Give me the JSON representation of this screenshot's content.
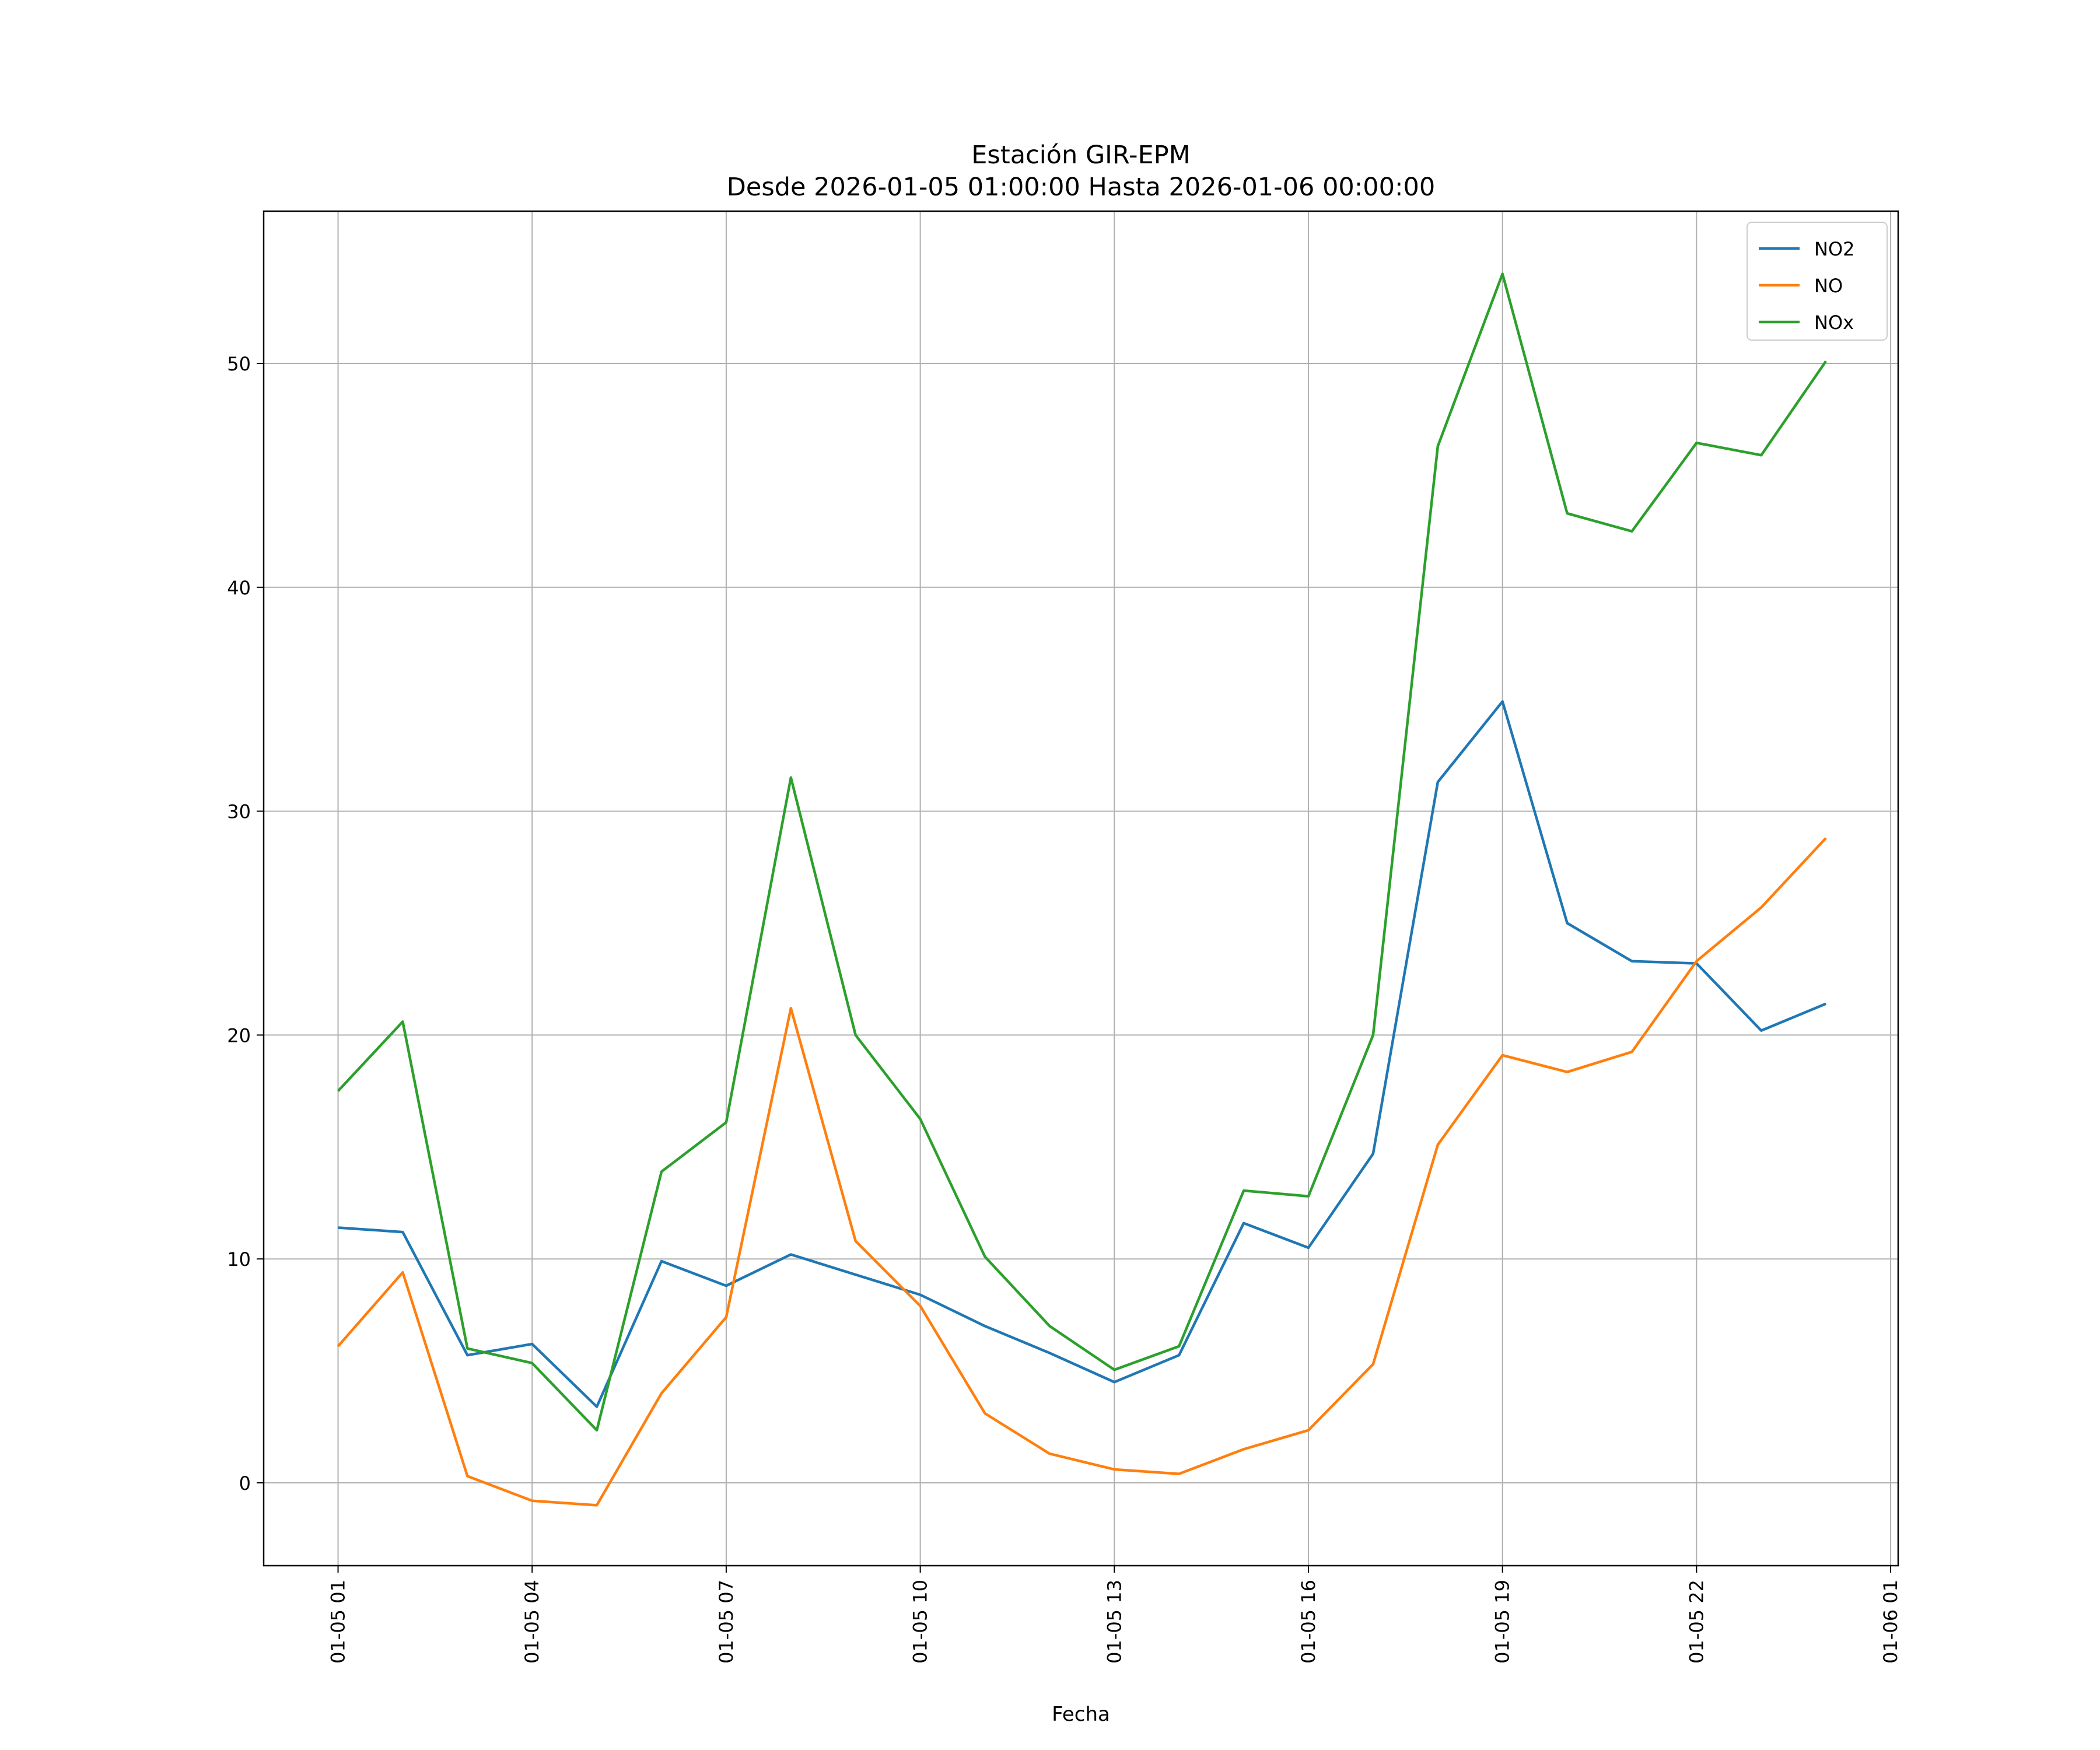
{
  "chart_data": {
    "type": "line",
    "title": "Estación GIR-EPM",
    "subtitle": "Desde 2026-01-05 01:00:00 Hasta 2026-01-06 00:00:00",
    "xlabel": "Fecha",
    "ylabel": "",
    "xlim": [
      "2026-01-04 23:51",
      "2026-01-06 01:07"
    ],
    "ylim": [
      -3.7,
      56.8
    ],
    "grid": true,
    "legend_position": "top-right",
    "x_ticks": [
      {
        "at": "2026-01-05 01:00",
        "label": "01-05 01"
      },
      {
        "at": "2026-01-05 04:00",
        "label": "01-05 04"
      },
      {
        "at": "2026-01-05 07:00",
        "label": "01-05 07"
      },
      {
        "at": "2026-01-05 10:00",
        "label": "01-05 10"
      },
      {
        "at": "2026-01-05 13:00",
        "label": "01-05 13"
      },
      {
        "at": "2026-01-05 16:00",
        "label": "01-05 16"
      },
      {
        "at": "2026-01-05 19:00",
        "label": "01-05 19"
      },
      {
        "at": "2026-01-05 22:00",
        "label": "01-05 22"
      },
      {
        "at": "2026-01-06 01:00",
        "label": "01-06 01"
      }
    ],
    "y_ticks": [
      0,
      10,
      20,
      30,
      40,
      50
    ],
    "x": [
      "2026-01-05 01:00",
      "2026-01-05 02:00",
      "2026-01-05 03:00",
      "2026-01-05 04:00",
      "2026-01-05 05:00",
      "2026-01-05 06:00",
      "2026-01-05 07:00",
      "2026-01-05 08:00",
      "2026-01-05 09:00",
      "2026-01-05 10:00",
      "2026-01-05 11:00",
      "2026-01-05 12:00",
      "2026-01-05 13:00",
      "2026-01-05 14:00",
      "2026-01-05 15:00",
      "2026-01-05 16:00",
      "2026-01-05 17:00",
      "2026-01-05 18:00",
      "2026-01-05 19:00",
      "2026-01-05 20:00",
      "2026-01-05 21:00",
      "2026-01-05 22:00",
      "2026-01-05 23:00",
      "2026-01-06 00:00"
    ],
    "series": [
      {
        "name": "NO2",
        "color": "#1f77b4",
        "values": [
          11.4,
          11.2,
          5.7,
          6.2,
          3.4,
          9.9,
          8.8,
          10.2,
          9.3,
          8.4,
          7.0,
          5.8,
          4.5,
          5.7,
          11.6,
          10.5,
          14.7,
          31.3,
          34.9,
          25.0,
          23.3,
          23.2,
          20.2,
          21.4
        ]
      },
      {
        "name": "NO",
        "color": "#ff7f0e",
        "values": [
          6.1,
          9.4,
          0.3,
          -0.8,
          -1.0,
          4.0,
          7.4,
          21.2,
          10.8,
          7.9,
          3.1,
          1.3,
          0.6,
          0.4,
          1.5,
          2.35,
          5.3,
          15.1,
          19.1,
          18.35,
          19.25,
          23.3,
          25.7,
          28.8
        ]
      },
      {
        "name": "NOx",
        "color": "#2ca02c",
        "values": [
          17.5,
          20.6,
          6.0,
          5.35,
          2.35,
          13.9,
          16.1,
          31.5,
          20.0,
          16.25,
          10.1,
          7.0,
          5.05,
          6.1,
          13.05,
          12.8,
          20.0,
          46.3,
          54.0,
          43.3,
          42.5,
          46.45,
          45.9,
          50.1
        ]
      }
    ]
  }
}
